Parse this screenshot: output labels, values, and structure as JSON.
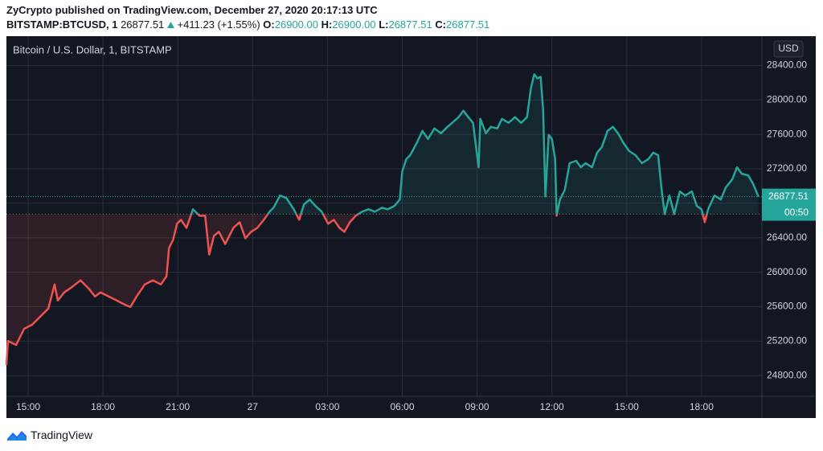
{
  "header": {
    "publisher": "ZyCrypto published on TradingView.com, December 27, 2020 20:17:13 UTC",
    "symbol": "BITSTAMP:BTCUSD, 1",
    "price": "26877.51",
    "change": "+411.23 (+1.55%)",
    "open_label": "O:",
    "open": "26900.00",
    "high_label": "H:",
    "high": "26900.00",
    "low_label": "L:",
    "low": "26877.51",
    "close_label": "C:",
    "close": "26877.51"
  },
  "footer": {
    "brand": "TradingView"
  },
  "chart_data": {
    "type": "line",
    "title": "Bitcoin / U.S. Dollar, 1, BITSTAMP",
    "currency": "USD",
    "countdown": "00:50",
    "baseline": 26675,
    "up_color": "#26a69a",
    "down_color": "#ef5350",
    "grid": true,
    "x": [
      14.13,
      14.19,
      14.52,
      14.84,
      15.16,
      15.48,
      15.81,
      16.06,
      16.19,
      16.45,
      16.77,
      17.1,
      17.42,
      17.68,
      17.9,
      18.23,
      18.55,
      18.87,
      19.1,
      19.35,
      19.68,
      20.0,
      20.32,
      20.55,
      20.65,
      20.81,
      20.97,
      21.13,
      21.35,
      21.61,
      21.87,
      22.1,
      22.26,
      22.45,
      22.65,
      22.9,
      23.23,
      23.48,
      23.71,
      23.94,
      24.19,
      24.45,
      24.68,
      24.84,
      25.1,
      25.35,
      25.65,
      25.87,
      26.06,
      26.29,
      26.52,
      26.77,
      27.03,
      27.26,
      27.48,
      27.68,
      27.9,
      28.13,
      28.39,
      28.65,
      28.9,
      29.19,
      29.42,
      29.68,
      29.9,
      30.0,
      30.16,
      30.32,
      30.58,
      30.81,
      31.03,
      31.29,
      31.55,
      31.81,
      32.0,
      32.26,
      32.45,
      32.65,
      32.84,
      33.06,
      33.13,
      33.35,
      33.55,
      33.81,
      34.0,
      34.26,
      34.52,
      34.77,
      35.0,
      35.16,
      35.29,
      35.42,
      35.55,
      35.65,
      35.74,
      35.87,
      36.0,
      36.13,
      36.19,
      36.32,
      36.52,
      36.71,
      36.97,
      37.16,
      37.35,
      37.61,
      37.81,
      38.0,
      38.23,
      38.45,
      38.65,
      38.87,
      39.1,
      39.35,
      39.61,
      39.87,
      40.06,
      40.26,
      40.39,
      40.52,
      40.71,
      40.9,
      41.13,
      41.35,
      41.61,
      41.81,
      42.0,
      42.13,
      42.26,
      42.52,
      42.77,
      42.97,
      43.23,
      43.42,
      43.61,
      43.87,
      44.06,
      44.28
    ],
    "values": [
      24922,
      25203,
      25156,
      25344,
      25391,
      25484,
      25578,
      25859,
      25672,
      25766,
      25831,
      25906,
      25813,
      25719,
      25766,
      25719,
      25672,
      25625,
      25597,
      25719,
      25859,
      25906,
      25859,
      25953,
      26281,
      26375,
      26563,
      26609,
      26516,
      26731,
      26656,
      26656,
      26206,
      26422,
      26469,
      26328,
      26516,
      26581,
      26394,
      26469,
      26516,
      26609,
      26703,
      26750,
      26891,
      26863,
      26731,
      26609,
      26788,
      26844,
      26769,
      26703,
      26563,
      26609,
      26516,
      26469,
      26581,
      26656,
      26703,
      26731,
      26703,
      26750,
      26731,
      26769,
      26844,
      27172,
      27313,
      27359,
      27500,
      27641,
      27547,
      27669,
      27613,
      27688,
      27734,
      27800,
      27875,
      27800,
      27734,
      27219,
      27781,
      27613,
      27688,
      27669,
      27781,
      27734,
      27800,
      27734,
      27800,
      28138,
      28297,
      28250,
      28269,
      27875,
      26881,
      27594,
      27547,
      27313,
      26656,
      26844,
      26956,
      27266,
      27294,
      27219,
      27266,
      27219,
      27388,
      27453,
      27641,
      27688,
      27613,
      27500,
      27406,
      27359,
      27266,
      27313,
      27388,
      27359,
      26984,
      26675,
      26891,
      26675,
      26938,
      26891,
      26938,
      26769,
      26731,
      26581,
      26731,
      26891,
      26844,
      26984,
      27078,
      27219,
      27144,
      27125,
      27031,
      26877.51
    ],
    "xlim": [
      14.13,
      44.42
    ],
    "ylim": [
      24560,
      28740
    ],
    "xticks": [
      {
        "value": 15,
        "label": "15:00"
      },
      {
        "value": 18,
        "label": "18:00"
      },
      {
        "value": 21,
        "label": "21:00"
      },
      {
        "value": 24,
        "label": "27"
      },
      {
        "value": 27,
        "label": "03:00"
      },
      {
        "value": 30,
        "label": "06:00"
      },
      {
        "value": 33,
        "label": "09:00"
      },
      {
        "value": 36,
        "label": "12:00"
      },
      {
        "value": 39,
        "label": "15:00"
      },
      {
        "value": 42,
        "label": "18:00"
      }
    ],
    "yticks": [
      {
        "value": 24800,
        "label": "24800.00"
      },
      {
        "value": 25200,
        "label": "25200.00"
      },
      {
        "value": 25600,
        "label": "25600.00"
      },
      {
        "value": 26000,
        "label": "26000.00"
      },
      {
        "value": 26400,
        "label": "26400.00"
      },
      {
        "value": 26800,
        "label": "26800.00"
      },
      {
        "value": 27200,
        "label": "27200.00"
      },
      {
        "value": 27600,
        "label": "27600.00"
      },
      {
        "value": 28000,
        "label": "28000.00"
      },
      {
        "value": 28400,
        "label": "28400.00"
      }
    ]
  }
}
